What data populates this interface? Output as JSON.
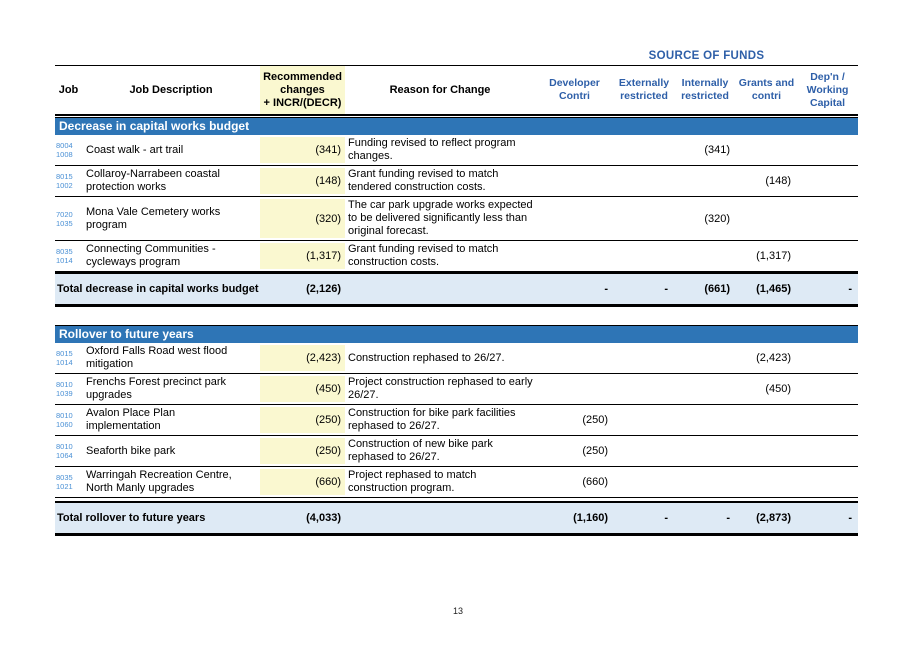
{
  "colors": {
    "section_bar": "#2E75B6",
    "blue_header_text": "#2E5FA8",
    "highlight_yellow": "#FAF8D0",
    "total_row_bg": "#DEEAF5",
    "job_code_blue": "#4A90D5"
  },
  "header": {
    "source_of_funds": "SOURCE OF FUNDS",
    "job": "Job",
    "description": "Job Description",
    "recommended": "Recommended\nchanges\n+ INCR/(DECR)",
    "reason": "Reason for Change",
    "fund_columns": [
      "Developer\nContri",
      "Externally\nrestricted",
      "Internally\nrestricted",
      "Grants and\ncontri",
      "Dep'n /\nWorking\nCapital"
    ]
  },
  "sections": [
    {
      "title": "Decrease in capital works budget",
      "rows": [
        {
          "job": [
            "8004",
            "1008"
          ],
          "desc": "Coast walk - art trail",
          "amount": "(341)",
          "reason": "Funding revised to reflect program changes.",
          "funds": [
            "",
            "",
            "(341)",
            "",
            ""
          ]
        },
        {
          "job": [
            "8015",
            "1002"
          ],
          "desc": "Collaroy-Narrabeen coastal protection works",
          "amount": "(148)",
          "reason": "Grant funding revised to match tendered construction costs.",
          "funds": [
            "",
            "",
            "",
            "(148)",
            ""
          ]
        },
        {
          "job": [
            "7020",
            "1035"
          ],
          "desc": "Mona Vale Cemetery works program",
          "amount": "(320)",
          "reason": "The car park upgrade works expected to be delivered significantly less than original forecast.",
          "funds": [
            "",
            "",
            "(320)",
            "",
            ""
          ]
        },
        {
          "job": [
            "8035",
            "1014"
          ],
          "desc": "Connecting Communities - cycleways program",
          "amount": "(1,317)",
          "reason": "Grant funding revised to match construction costs.",
          "funds": [
            "",
            "",
            "",
            "(1,317)",
            ""
          ]
        }
      ],
      "total": {
        "label": "Total decrease in capital works budget",
        "amount": "(2,126)",
        "funds": [
          "-",
          "-",
          "(661)",
          "(1,465)",
          "-"
        ]
      }
    },
    {
      "title": "Rollover to future years",
      "rows": [
        {
          "job": [
            "8015",
            "1014"
          ],
          "desc": "Oxford Falls Road west flood mitigation",
          "amount": "(2,423)",
          "reason": "Construction rephased to 26/27.",
          "funds": [
            "",
            "",
            "",
            "(2,423)",
            ""
          ]
        },
        {
          "job": [
            "8010",
            "1039"
          ],
          "desc": "Frenchs Forest precinct park upgrades",
          "amount": "(450)",
          "reason": "Project construction rephased to early 26/27.",
          "funds": [
            "",
            "",
            "",
            "(450)",
            ""
          ]
        },
        {
          "job": [
            "8010",
            "1060"
          ],
          "desc": "Avalon Place Plan implementation",
          "amount": "(250)",
          "reason": "Construction for bike park facilities rephased to 26/27.",
          "funds": [
            "(250)",
            "",
            "",
            "",
            ""
          ]
        },
        {
          "job": [
            "8010",
            "1064"
          ],
          "desc": "Seaforth bike park",
          "amount": "(250)",
          "reason": "Construction of new bike park rephased to 26/27.",
          "funds": [
            "(250)",
            "",
            "",
            "",
            ""
          ]
        },
        {
          "job": [
            "8035",
            "1021"
          ],
          "desc": "Warringah Recreation Centre, North Manly upgrades",
          "amount": "(660)",
          "reason": "Project rephased to match construction program.",
          "funds": [
            "(660)",
            "",
            "",
            "",
            ""
          ]
        }
      ],
      "total": {
        "label": "Total rollover to future years",
        "amount": "(4,033)",
        "funds": [
          "(1,160)",
          "-",
          "-",
          "(2,873)",
          "-"
        ]
      }
    }
  ],
  "footer": {
    "page_number": "13"
  }
}
